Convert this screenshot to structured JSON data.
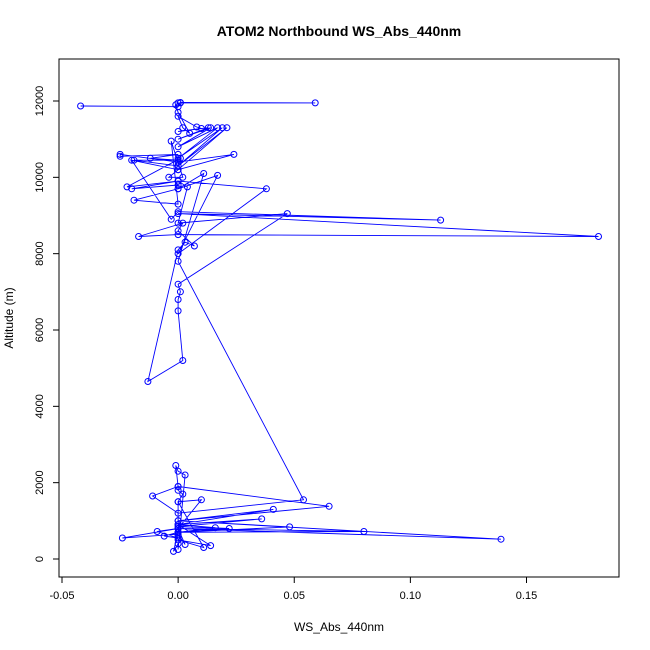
{
  "chart_data": {
    "type": "line",
    "title": "ATOM2 Northbound WS_Abs_440nm",
    "xlabel": "WS_Abs_440nm",
    "ylabel": "Altitude (m)",
    "xlim": [
      -0.05,
      0.2
    ],
    "ylim": [
      0,
      13000
    ],
    "xticks": [
      -0.05,
      0.0,
      0.05,
      0.1,
      0.15
    ],
    "xtick_labels": [
      "-0.05",
      "0.00",
      "0.05",
      "0.10",
      "0.15"
    ],
    "yticks": [
      0,
      2000,
      4000,
      6000,
      8000,
      10000,
      12000
    ],
    "ytick_labels": [
      "0",
      "2000",
      "4000",
      "6000",
      "8000",
      "10000",
      "12000"
    ],
    "grid": false,
    "markers": "open-circle",
    "colors": {
      "series": "#0000ff",
      "axis": "#000000"
    },
    "series": [
      {
        "x": [
          -0.042,
          0.0,
          0.001,
          0.059,
          0.001,
          0.0,
          -0.001,
          0.0,
          0.005,
          0.002,
          0.0,
          0.008,
          0.01,
          0.0,
          0.013,
          0.0,
          0.014,
          0.0,
          0.017,
          0.0,
          0.019,
          0.0,
          0.021,
          0.0,
          0.024,
          0.0,
          -0.025,
          -0.025,
          0.0,
          -0.012,
          0.0,
          -0.019,
          0.0,
          0.001,
          -0.022,
          0.0,
          -0.02,
          0.0,
          0.0,
          -0.019,
          0.0,
          -0.003,
          0.002,
          -0.004,
          0.0,
          -0.02,
          -0.003,
          0.0,
          0.113,
          0.0,
          0.181,
          0.0,
          -0.017,
          0.002,
          0.0,
          0.007,
          0.003,
          0.0,
          -0.013,
          0.002,
          0.0,
          0.0,
          0.001,
          0.0,
          0.047,
          0.0,
          0.004,
          0.0,
          0.038,
          0.0,
          0.017,
          0.0,
          0.011,
          0.0,
          0.054,
          0.0,
          -0.011,
          0.0,
          0.065,
          0.0,
          0.139,
          0.0,
          0.08,
          0.0,
          0.048,
          0.0,
          0.041,
          0.0,
          0.036,
          0.0,
          0.022,
          0.0,
          0.016,
          0.0,
          0.014,
          0.0,
          0.011,
          0.0,
          0.01,
          0.0,
          0.003,
          0.0,
          -0.024,
          0.0,
          -0.009,
          0.0,
          -0.006,
          0.0,
          -0.002,
          0.0,
          0.0,
          0.003,
          0.0,
          -0.001,
          0.0,
          0.0,
          0.002,
          0.0,
          0.0
        ],
        "y": [
          11870,
          11850,
          11960,
          11950,
          11950,
          11950,
          11900,
          11700,
          11150,
          11300,
          11600,
          11320,
          11280,
          11200,
          11300,
          11000,
          11300,
          10800,
          11300,
          10500,
          11300,
          10300,
          11300,
          10200,
          10600,
          10400,
          10600,
          10550,
          10600,
          10500,
          10450,
          10450,
          10300,
          10500,
          9750,
          9900,
          9700,
          9800,
          9700,
          9400,
          9300,
          10950,
          10000,
          10000,
          10200,
          10450,
          8900,
          9100,
          8880,
          9050,
          8450,
          8500,
          8450,
          8800,
          8600,
          8200,
          8300,
          8100,
          4650,
          5200,
          6500,
          6800,
          7000,
          7200,
          9050,
          8800,
          9750,
          9900,
          9700,
          8000,
          10050,
          9700,
          10100,
          7800,
          1550,
          1200,
          1650,
          1900,
          1380,
          1000,
          520,
          800,
          720,
          700,
          840,
          1000,
          1300,
          900,
          1050,
          850,
          800,
          700,
          820,
          900,
          350,
          500,
          300,
          1500,
          1550,
          800,
          380,
          650,
          550,
          800,
          720,
          550,
          600,
          700,
          200,
          400,
          250,
          2200,
          2300,
          2450,
          1900,
          1800,
          1700,
          1500,
          600
        ]
      }
    ]
  }
}
